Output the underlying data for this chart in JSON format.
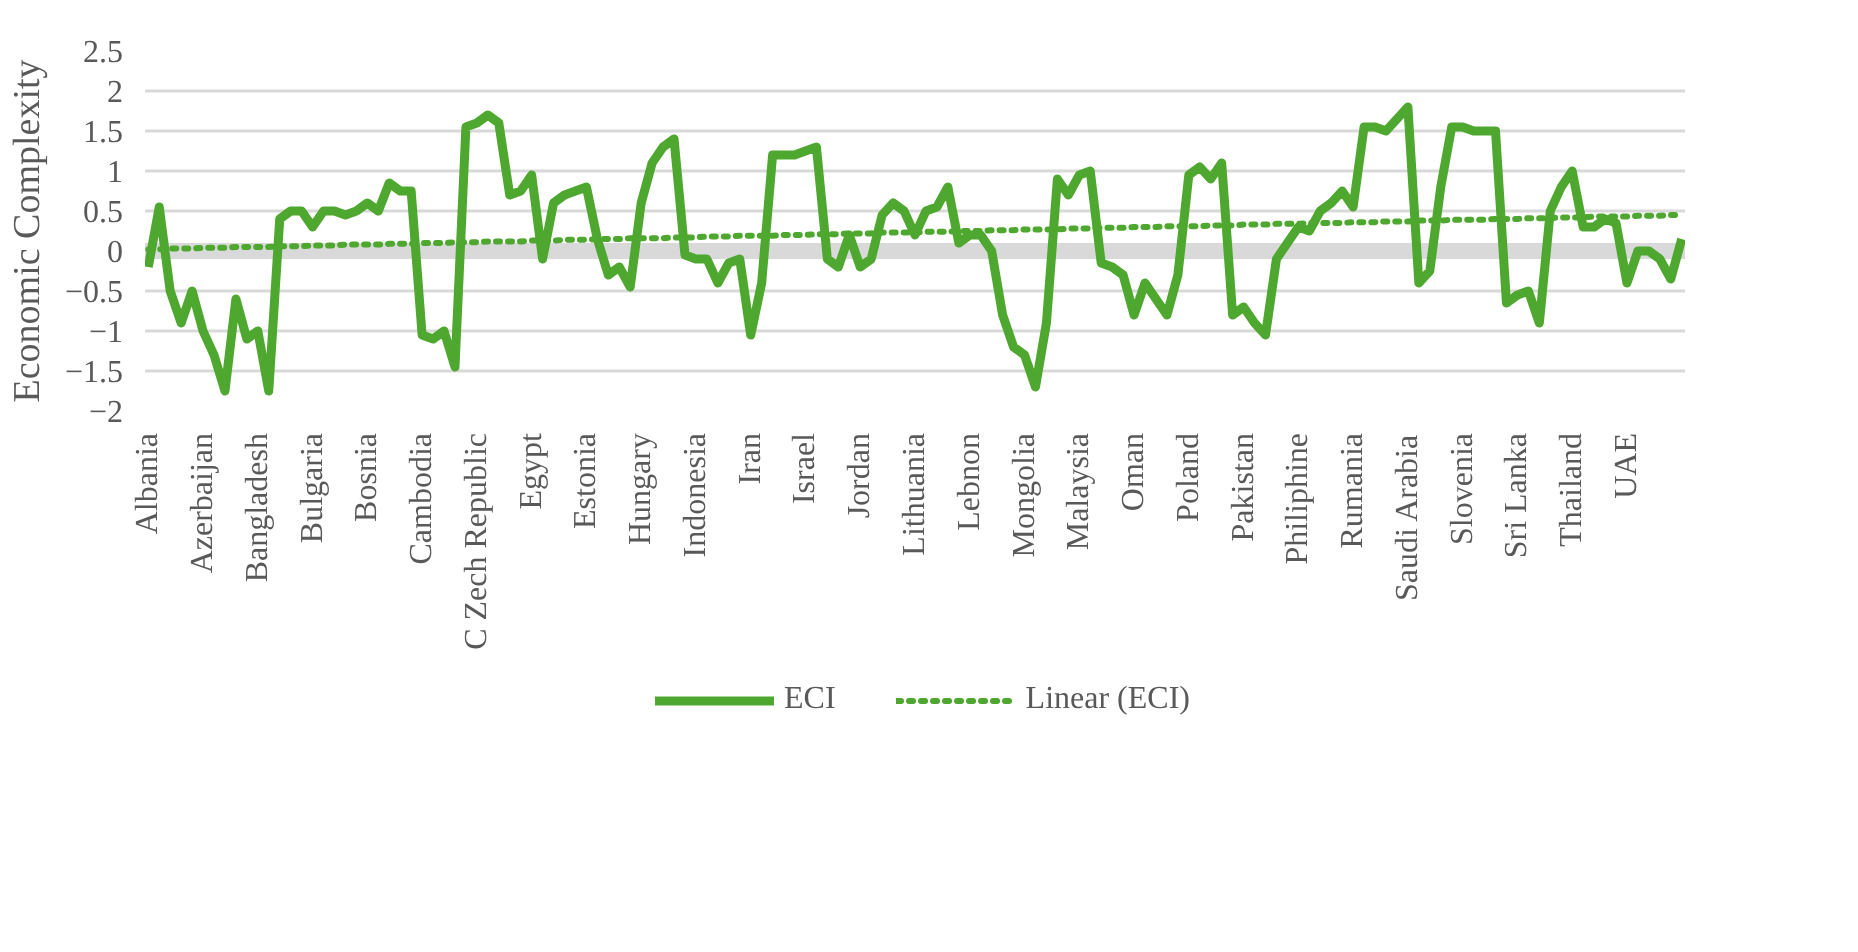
{
  "chart_data": {
    "type": "line",
    "ylabel": "Economic Complexity",
    "categories": [
      "Albania",
      null,
      null,
      null,
      null,
      "Azerbaijan",
      null,
      null,
      null,
      null,
      "Bangladesh",
      null,
      null,
      null,
      null,
      "Bulgaria",
      null,
      null,
      null,
      null,
      "Bosnia",
      null,
      null,
      null,
      null,
      "Cambodia",
      null,
      null,
      null,
      null,
      "C Zech Republic",
      null,
      null,
      null,
      null,
      "Egypt",
      null,
      null,
      null,
      null,
      "Estonia",
      null,
      null,
      null,
      null,
      "Hungary",
      null,
      null,
      null,
      null,
      "Indonesia",
      null,
      null,
      null,
      null,
      "Iran",
      null,
      null,
      null,
      null,
      "Israel",
      null,
      null,
      null,
      null,
      "Jordan",
      null,
      null,
      null,
      null,
      "Lithuania",
      null,
      null,
      null,
      null,
      "Lebnon",
      null,
      null,
      null,
      null,
      "Mongolia",
      null,
      null,
      null,
      null,
      "Malaysia",
      null,
      null,
      null,
      null,
      "Oman",
      null,
      null,
      null,
      null,
      "Poland",
      null,
      null,
      null,
      null,
      "Pakistan",
      null,
      null,
      null,
      null,
      "Philiphine",
      null,
      null,
      null,
      null,
      "Rumania",
      null,
      null,
      null,
      null,
      "Saudi Arabia",
      null,
      null,
      null,
      null,
      "Slovenia",
      null,
      null,
      null,
      null,
      "Sri Lanka",
      null,
      null,
      null,
      null,
      "Thailand",
      null,
      null,
      null,
      null,
      "UAE",
      null,
      null,
      null,
      null,
      null
    ],
    "ylim": [
      -2,
      2.5
    ],
    "yticks": [
      -2,
      -1.5,
      -1,
      -0.5,
      0,
      0.5,
      1,
      1.5,
      2,
      2.5
    ],
    "grid": "y",
    "legend": "bottom",
    "ref_lines": [
      {
        "axis": "y",
        "value": 0,
        "color": "#d9d9d9"
      }
    ],
    "series": [
      {
        "name": "ECI",
        "color": "#4ea72e",
        "line_style": "solid",
        "values": [
          -0.2,
          0.55,
          -0.5,
          -0.9,
          -0.5,
          -1.0,
          -1.3,
          -1.75,
          -0.6,
          -1.1,
          -1.0,
          -1.75,
          0.4,
          0.5,
          0.5,
          0.3,
          0.5,
          0.5,
          0.45,
          0.5,
          0.6,
          0.5,
          0.85,
          0.75,
          0.75,
          -1.05,
          -1.1,
          -1.0,
          -1.45,
          1.55,
          1.6,
          1.7,
          1.6,
          0.7,
          0.75,
          0.95,
          -0.1,
          0.6,
          0.7,
          0.75,
          0.8,
          0.15,
          -0.3,
          -0.2,
          -0.45,
          0.6,
          1.1,
          1.3,
          1.4,
          -0.05,
          -0.1,
          -0.1,
          -0.4,
          -0.15,
          -0.1,
          -1.05,
          -0.4,
          1.2,
          1.2,
          1.2,
          1.25,
          1.3,
          -0.1,
          -0.2,
          0.2,
          -0.2,
          -0.1,
          0.45,
          0.6,
          0.5,
          0.2,
          0.5,
          0.55,
          0.8,
          0.1,
          0.2,
          0.2,
          0.0,
          -0.8,
          -1.2,
          -1.3,
          -1.7,
          -0.9,
          0.9,
          0.7,
          0.95,
          1.0,
          -0.15,
          -0.2,
          -0.3,
          -0.8,
          -0.4,
          -0.6,
          -0.8,
          -0.3,
          0.95,
          1.05,
          0.9,
          1.1,
          -0.8,
          -0.7,
          -0.9,
          -1.05,
          -0.1,
          0.1,
          0.3,
          0.25,
          0.5,
          0.6,
          0.75,
          0.55,
          1.55,
          1.55,
          1.5,
          1.65,
          1.8,
          -0.4,
          -0.25,
          0.8,
          1.55,
          1.55,
          1.5,
          1.5,
          1.5,
          -0.65,
          -0.55,
          -0.5,
          -0.9,
          0.5,
          0.8,
          1.0,
          0.3,
          0.3,
          0.4,
          0.35,
          -0.4,
          0.0,
          0.0,
          -0.1,
          -0.35,
          0.15
        ]
      },
      {
        "name": "Linear (ECI)",
        "color": "#4ea72e",
        "line_style": "dotted",
        "values": [
          0.02,
          0.02,
          0.03,
          0.03,
          0.03,
          0.04,
          0.04,
          0.04,
          0.05,
          0.05,
          0.05,
          0.05,
          0.06,
          0.06,
          0.06,
          0.07,
          0.07,
          0.07,
          0.08,
          0.08,
          0.08,
          0.08,
          0.09,
          0.09,
          0.09,
          0.1,
          0.1,
          0.1,
          0.11,
          0.11,
          0.11,
          0.12,
          0.12,
          0.12,
          0.12,
          0.13,
          0.13,
          0.13,
          0.14,
          0.14,
          0.14,
          0.15,
          0.15,
          0.15,
          0.16,
          0.16,
          0.16,
          0.16,
          0.17,
          0.17,
          0.17,
          0.18,
          0.18,
          0.18,
          0.19,
          0.19,
          0.19,
          0.19,
          0.2,
          0.2,
          0.2,
          0.21,
          0.21,
          0.21,
          0.22,
          0.22,
          0.22,
          0.23,
          0.23,
          0.23,
          0.23,
          0.24,
          0.24,
          0.24,
          0.25,
          0.25,
          0.25,
          0.26,
          0.26,
          0.26,
          0.27,
          0.27,
          0.27,
          0.27,
          0.28,
          0.28,
          0.28,
          0.29,
          0.29,
          0.29,
          0.3,
          0.3,
          0.3,
          0.31,
          0.31,
          0.31,
          0.31,
          0.32,
          0.32,
          0.32,
          0.33,
          0.33,
          0.33,
          0.34,
          0.34,
          0.34,
          0.35,
          0.35,
          0.35,
          0.35,
          0.36,
          0.36,
          0.36,
          0.37,
          0.37,
          0.37,
          0.38,
          0.38,
          0.38,
          0.39,
          0.39,
          0.39,
          0.39,
          0.4,
          0.4,
          0.4,
          0.41,
          0.41,
          0.41,
          0.42,
          0.42,
          0.42,
          0.43,
          0.43,
          0.43,
          0.43,
          0.44,
          0.44,
          0.44,
          0.45,
          0.45
        ]
      }
    ]
  }
}
